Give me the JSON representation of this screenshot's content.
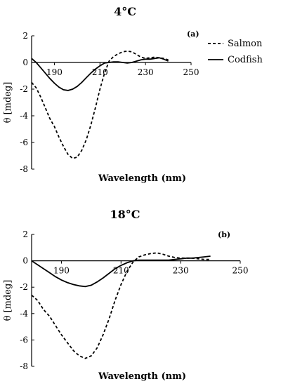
{
  "legend": {
    "items": [
      {
        "name": "Salmon",
        "dash": "4,3"
      },
      {
        "name": "Codfish",
        "dash": ""
      }
    ]
  },
  "chart_data": [
    {
      "type": "line",
      "title": "4°C",
      "panel_label": "(a)",
      "xlabel": "Wavelength (nm)",
      "ylabel": "θ [mdeg]",
      "xlim": [
        180,
        250
      ],
      "ylim": [
        -8,
        2
      ],
      "xticks": [
        190,
        210,
        230,
        250
      ],
      "yticks": [
        2,
        0,
        -2,
        -4,
        -6,
        -8
      ],
      "series": [
        {
          "name": "Salmon",
          "x": [
            180,
            182,
            184,
            186,
            188,
            190,
            192,
            194,
            196,
            198,
            200,
            202,
            204,
            206,
            208,
            210,
            212,
            214,
            216,
            218,
            220,
            222,
            224,
            226,
            228,
            230,
            232,
            234,
            236,
            238,
            240
          ],
          "y": [
            -1.5,
            -1.9,
            -2.6,
            -3.4,
            -4.2,
            -4.8,
            -5.6,
            -6.3,
            -6.9,
            -7.2,
            -7.1,
            -6.6,
            -5.8,
            -4.7,
            -3.4,
            -2.0,
            -0.8,
            0.1,
            0.45,
            0.65,
            0.8,
            0.85,
            0.8,
            0.6,
            0.4,
            0.3,
            0.35,
            0.4,
            0.35,
            0.3,
            0.2
          ]
        },
        {
          "name": "Codfish",
          "x": [
            180,
            182,
            184,
            186,
            188,
            190,
            192,
            194,
            196,
            198,
            200,
            202,
            204,
            206,
            208,
            210,
            212,
            214,
            216,
            218,
            220,
            222,
            224,
            226,
            228,
            230,
            232,
            234,
            236,
            238,
            240
          ],
          "y": [
            0.3,
            0.0,
            -0.4,
            -0.8,
            -1.2,
            -1.55,
            -1.85,
            -2.05,
            -2.1,
            -2.0,
            -1.8,
            -1.5,
            -1.15,
            -0.8,
            -0.5,
            -0.25,
            -0.05,
            0.0,
            0.05,
            0.05,
            0.0,
            -0.05,
            0.0,
            0.1,
            0.2,
            0.25,
            0.25,
            0.3,
            0.35,
            0.25,
            0.1
          ]
        }
      ]
    },
    {
      "type": "line",
      "title": "18°C",
      "panel_label": "(b)",
      "xlabel": "Wavelength (nm)",
      "ylabel": "θ [mdeg]",
      "xlim": [
        180,
        250
      ],
      "ylim": [
        -8,
        2
      ],
      "xticks": [
        190,
        210,
        230,
        250
      ],
      "yticks": [
        2,
        0,
        -2,
        -4,
        -6,
        -8
      ],
      "series": [
        {
          "name": "Salmon",
          "x": [
            180,
            182,
            184,
            186,
            188,
            190,
            192,
            194,
            196,
            198,
            200,
            202,
            204,
            206,
            208,
            210,
            212,
            214,
            216,
            218,
            220,
            222,
            224,
            226,
            228,
            230,
            232,
            234,
            236,
            238,
            240
          ],
          "y": [
            -2.6,
            -3.0,
            -3.7,
            -4.2,
            -4.9,
            -5.6,
            -6.2,
            -6.8,
            -7.2,
            -7.4,
            -7.2,
            -6.6,
            -5.6,
            -4.4,
            -3.0,
            -1.8,
            -0.8,
            -0.1,
            0.3,
            0.45,
            0.55,
            0.6,
            0.5,
            0.35,
            0.25,
            0.2,
            0.2,
            0.2,
            0.15,
            0.1,
            0.1
          ]
        },
        {
          "name": "Codfish",
          "x": [
            180,
            182,
            184,
            186,
            188,
            190,
            192,
            194,
            196,
            198,
            200,
            202,
            204,
            206,
            208,
            210,
            212,
            214,
            216,
            218,
            220,
            222,
            224,
            226,
            228,
            230,
            232,
            234,
            236,
            238,
            240
          ],
          "y": [
            0.0,
            -0.3,
            -0.6,
            -0.9,
            -1.2,
            -1.45,
            -1.65,
            -1.8,
            -1.9,
            -1.95,
            -1.85,
            -1.6,
            -1.3,
            -0.95,
            -0.6,
            -0.35,
            -0.15,
            0.0,
            0.05,
            0.05,
            0.05,
            0.05,
            0.05,
            0.05,
            0.1,
            0.15,
            0.2,
            0.2,
            0.25,
            0.3,
            0.35
          ]
        }
      ]
    }
  ]
}
